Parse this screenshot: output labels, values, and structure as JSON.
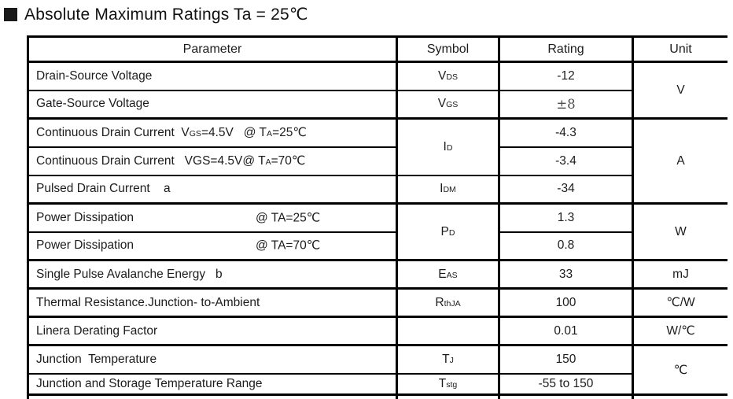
{
  "colors": {
    "border": "#000000",
    "text": "#1c1c1e",
    "serif_muted": "#4f4f4f",
    "marker": "#1a1a1a"
  },
  "title": {
    "marker_icon": "black-square",
    "text": "Absolute Maximum Ratings Ta = 25℃"
  },
  "table": {
    "headers": [
      "Parameter",
      "Symbol",
      "Rating",
      "Unit"
    ],
    "rows": [
      {
        "parameter": "Drain-Source Voltage",
        "symbol": "V<span class='sub'>DS</span>",
        "rating": "-12",
        "unit": "V"
      },
      {
        "parameter": "Gate-Source Voltage",
        "symbol": "V<span class='sub'>GS</span>",
        "rating": "±8"
      },
      {
        "parameter": "Continuous Drain Current  V<span class='sub'>GS</span>=4.5V   @ T<span class='sub'>A</span>=25℃",
        "symbol": "I<span class='sub'>D</span>",
        "rating": "-4.3",
        "unit": "A"
      },
      {
        "parameter": "Continuous Drain Current   VGS=4.5V@ T<span class='sub'>A</span>=70℃",
        "rating": "-3.4"
      },
      {
        "parameter": "Pulsed Drain Current    a",
        "symbol": "I<span class='sub'>DM</span>",
        "rating": "-34"
      },
      {
        "parameter": "Power Dissipation",
        "condition": "@ TA=25℃",
        "symbol": "P<span class='sub'>D</span>",
        "rating": "1.3",
        "unit": "W"
      },
      {
        "parameter": "Power Dissipation",
        "condition": "@ TA=70℃",
        "rating": "0.8"
      },
      {
        "parameter": "Single Pulse Avalanche Energy   b",
        "symbol": "E<span class='sub'>AS</span>",
        "rating": "33",
        "unit": "mJ"
      },
      {
        "parameter": "Thermal Resistance.Junction- to-Ambient",
        "symbol": "R<span class='sub'>thJA</span>",
        "rating": "100",
        "unit": "℃/W"
      },
      {
        "parameter": "Linera Derating Factor",
        "symbol": "",
        "rating": "0.01",
        "unit": "W/℃"
      },
      {
        "parameter": "Junction  Temperature",
        "symbol": "T<span class='sub'>J</span>",
        "rating": "150",
        "unit": "℃"
      },
      {
        "parameter": "Junction and Storage Temperature Range",
        "symbol": "T<span class='sub'>stg</span>",
        "rating": "-55 to 150"
      }
    ]
  }
}
